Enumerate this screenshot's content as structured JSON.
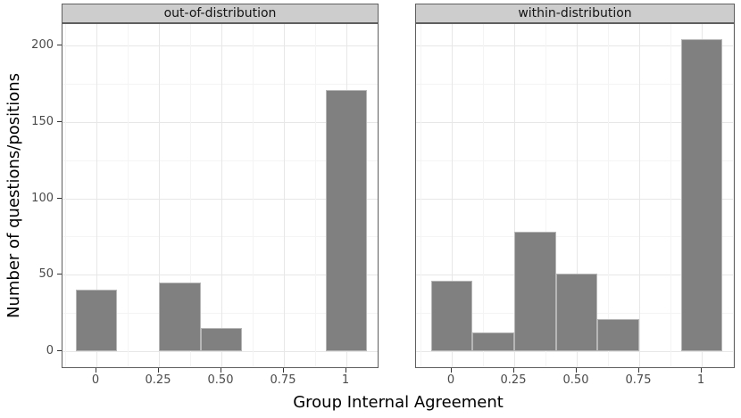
{
  "chart_data": {
    "type": "bar",
    "subtype": "faceted-histogram",
    "title": "",
    "xlabel": "Group Internal Agreement",
    "ylabel": "Number of questions/positions",
    "legend": "none",
    "grid": "major and minor light gray gridlines on white panel",
    "bar_color": "#808080",
    "binwidth": 0.1667,
    "xlim": [
      -0.14,
      1.14
    ],
    "ylim": [
      0,
      215
    ],
    "x_tick_values": [
      0,
      0.25,
      0.5,
      0.75,
      1
    ],
    "x_tick_labels": [
      "0",
      "0.25",
      "0.50",
      "0.75",
      "1"
    ],
    "x_minor_values": [
      -0.125,
      0.125,
      0.375,
      0.625,
      0.875,
      1.125
    ],
    "y_tick_values": [
      0,
      50,
      100,
      150,
      200
    ],
    "y_tick_labels": [
      "0",
      "50",
      "100",
      "150",
      "200"
    ],
    "y_minor_values": [
      25,
      75,
      125,
      175
    ],
    "facets": [
      {
        "label": "out-of-distribution",
        "bins": [
          {
            "x": 0,
            "count": 40
          },
          {
            "x": 0.333,
            "count": 45
          },
          {
            "x": 0.5,
            "count": 15
          },
          {
            "x": 1,
            "count": 171
          }
        ]
      },
      {
        "label": "within-distribution",
        "bins": [
          {
            "x": 0,
            "count": 46
          },
          {
            "x": 0.167,
            "count": 12
          },
          {
            "x": 0.333,
            "count": 78
          },
          {
            "x": 0.5,
            "count": 51
          },
          {
            "x": 0.667,
            "count": 21
          },
          {
            "x": 1,
            "count": 204
          }
        ]
      }
    ]
  }
}
